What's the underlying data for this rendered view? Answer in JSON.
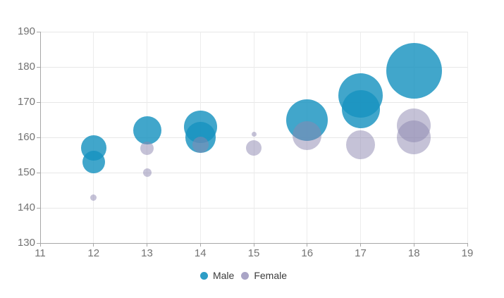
{
  "chart_data": {
    "type": "bubble",
    "title": "",
    "xlabel": "",
    "ylabel": "",
    "xlim": [
      11,
      19
    ],
    "ylim": [
      130,
      190
    ],
    "x_ticks": [
      "11",
      "12",
      "13",
      "14",
      "15",
      "16",
      "17",
      "18",
      "19"
    ],
    "y_ticks": [
      "130",
      "140",
      "150",
      "160",
      "170",
      "180",
      "190"
    ],
    "grid": true,
    "legend_position": "bottom-center",
    "series": [
      {
        "name": "Male",
        "marker_color": "#2d9dc6",
        "fill_color": "rgba(23,146,191,0.82)",
        "points": [
          {
            "x": 12,
            "y": 157,
            "r": 17.8
          },
          {
            "x": 12,
            "y": 153,
            "r": 16
          },
          {
            "x": 13,
            "y": 162,
            "r": 20
          },
          {
            "x": 14,
            "y": 163,
            "r": 23.3
          },
          {
            "x": 14,
            "y": 160,
            "r": 21.7
          },
          {
            "x": 16,
            "y": 165,
            "r": 29.5
          },
          {
            "x": 17,
            "y": 172,
            "r": 31.5
          },
          {
            "x": 17,
            "y": 168,
            "r": 27
          },
          {
            "x": 18,
            "y": 179,
            "r": 39.5
          }
        ]
      },
      {
        "name": "Female",
        "marker_color": "#a9a4c6",
        "fill_color": "rgba(140,133,175,0.5)",
        "points": [
          {
            "x": 12,
            "y": 143,
            "r": 4.5
          },
          {
            "x": 13,
            "y": 157,
            "r": 9.5
          },
          {
            "x": 13,
            "y": 150,
            "r": 6
          },
          {
            "x": 14,
            "y": 158,
            "r": 11.5
          },
          {
            "x": 15,
            "y": 161,
            "r": 3.5
          },
          {
            "x": 15,
            "y": 157,
            "r": 11
          },
          {
            "x": 16,
            "y": 160.5,
            "r": 20.5
          },
          {
            "x": 17,
            "y": 158,
            "r": 20.5
          },
          {
            "x": 18,
            "y": 163.5,
            "r": 24
          },
          {
            "x": 18,
            "y": 160,
            "r": 24
          }
        ]
      }
    ]
  },
  "legend": {
    "items": [
      {
        "label": "Male"
      },
      {
        "label": "Female"
      }
    ]
  },
  "layout_colors": {
    "gridline": "#e9e9e9",
    "axis_line": "#a7a7a7",
    "axis_text": "#737373",
    "legend_text": "#3b3b3b"
  }
}
